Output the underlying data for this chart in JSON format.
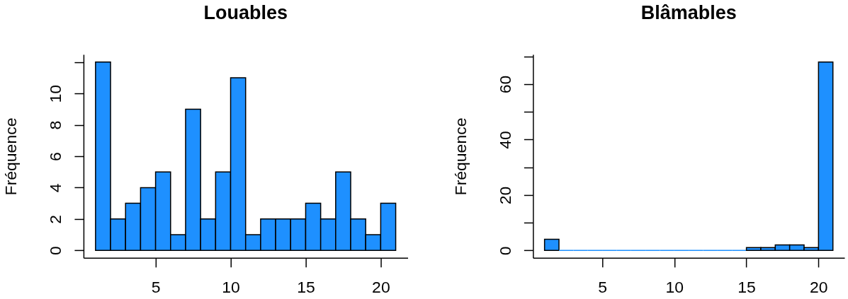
{
  "chart_data": [
    {
      "type": "histogram",
      "title": "Louables",
      "ylabel": "Fréquence",
      "bins": [
        1,
        2,
        3,
        4,
        5,
        6,
        7,
        8,
        9,
        10,
        11,
        12,
        13,
        14,
        15,
        16,
        17,
        18,
        19,
        20,
        21
      ],
      "values": [
        12,
        2,
        3,
        4,
        5,
        1,
        9,
        2,
        5,
        11,
        1,
        2,
        2,
        2,
        3,
        2,
        5,
        2,
        1,
        3
      ],
      "color": "#1e90ff",
      "xlim": [
        0.2,
        21.8
      ],
      "ylim": [
        -0.48,
        12.48
      ],
      "xticks": [
        5,
        10,
        15,
        20
      ],
      "yticks": [
        0,
        2,
        4,
        6,
        8,
        10,
        {
          "value": 12,
          "label": null
        }
      ]
    },
    {
      "type": "histogram",
      "title": "Blâmables",
      "ylabel": "Fréquence",
      "bins": [
        1,
        2,
        3,
        4,
        5,
        6,
        7,
        8,
        9,
        10,
        11,
        12,
        13,
        14,
        15,
        16,
        17,
        18,
        19,
        20,
        21
      ],
      "values": [
        4,
        0,
        0,
        0,
        0,
        0,
        0,
        0,
        0,
        0,
        0,
        0,
        0,
        0,
        1,
        1,
        2,
        2,
        1,
        68
      ],
      "color": "#1e90ff",
      "xlim": [
        0.2,
        21.8
      ],
      "ylim": [
        -2.7,
        70.7
      ],
      "xticks": [
        5,
        10,
        15,
        20
      ],
      "yticks": [
        0,
        {
          "value": 10,
          "label": null
        },
        20,
        {
          "value": 30,
          "label": null
        },
        40,
        {
          "value": 50,
          "label": null
        },
        60,
        {
          "value": 70,
          "label": null
        }
      ]
    }
  ]
}
